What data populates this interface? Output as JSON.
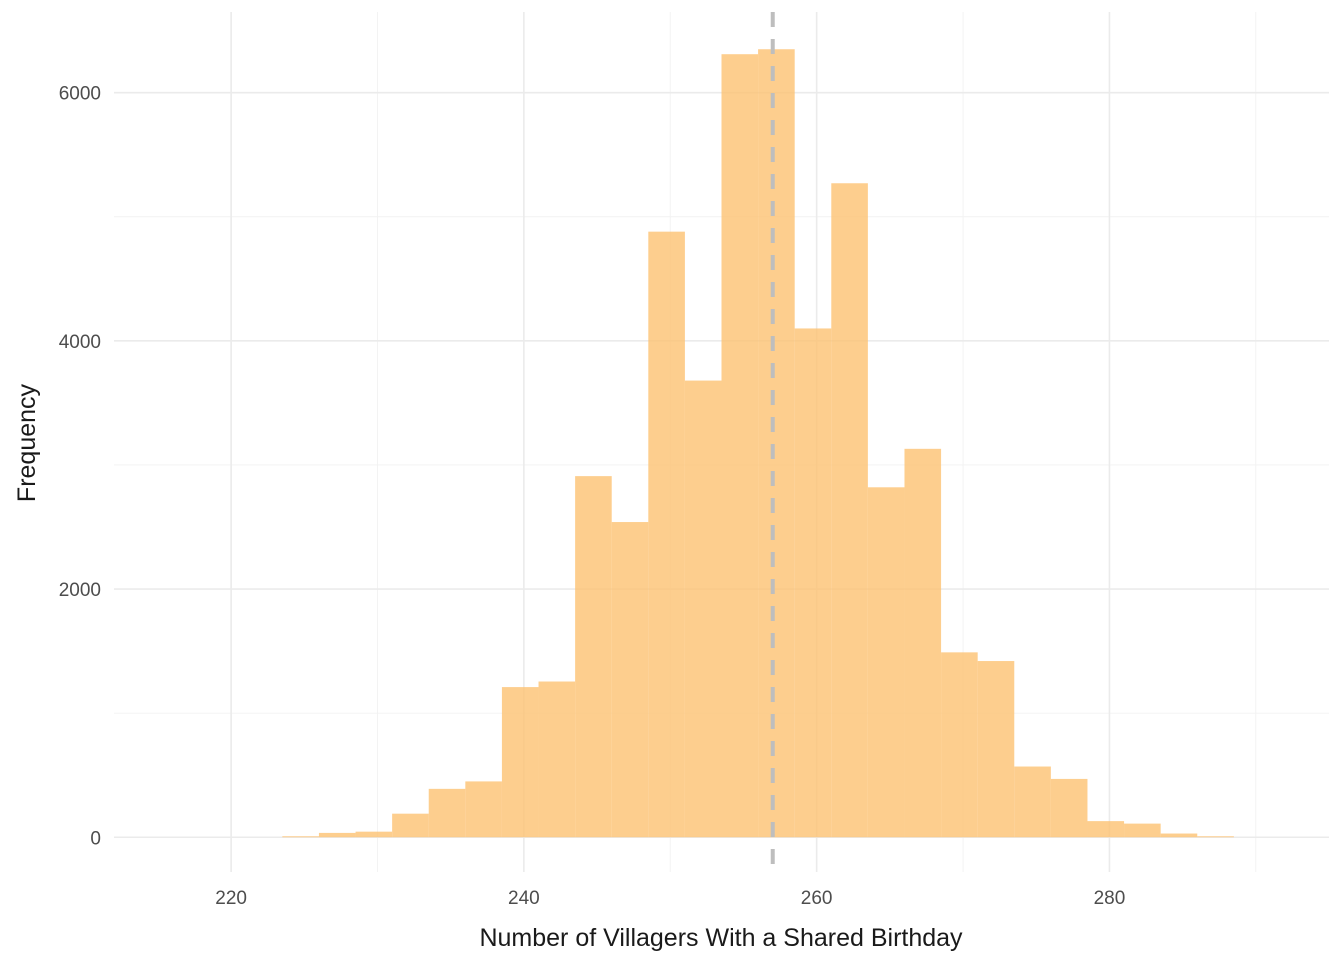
{
  "chart_data": {
    "type": "bar",
    "subtype": "histogram",
    "xlabel": "Number of Villagers With a Shared Birthday",
    "ylabel": "Frequency",
    "xlim": [
      212,
      295
    ],
    "ylim": [
      -280,
      6650
    ],
    "x_ticks": [
      220,
      240,
      260,
      280
    ],
    "x_tick_labels": [
      "220",
      "240",
      "260",
      "280"
    ],
    "y_ticks": [
      0,
      2000,
      4000,
      6000
    ],
    "y_tick_labels": [
      "0",
      "2000",
      "4000",
      "6000"
    ],
    "grid": true,
    "bin_width": 2.5,
    "bins": [
      {
        "x0": 223.5,
        "x1": 226.0,
        "count": 8
      },
      {
        "x0": 226.0,
        "x1": 228.5,
        "count": 35
      },
      {
        "x0": 228.5,
        "x1": 231.0,
        "count": 45
      },
      {
        "x0": 231.0,
        "x1": 233.5,
        "count": 190
      },
      {
        "x0": 233.5,
        "x1": 236.0,
        "count": 390
      },
      {
        "x0": 236.0,
        "x1": 238.5,
        "count": 450
      },
      {
        "x0": 238.5,
        "x1": 241.0,
        "count": 1210
      },
      {
        "x0": 241.0,
        "x1": 243.5,
        "count": 1255
      },
      {
        "x0": 243.5,
        "x1": 246.0,
        "count": 2910
      },
      {
        "x0": 246.0,
        "x1": 248.5,
        "count": 2540
      },
      {
        "x0": 248.5,
        "x1": 251.0,
        "count": 4880
      },
      {
        "x0": 251.0,
        "x1": 253.5,
        "count": 3680
      },
      {
        "x0": 253.5,
        "x1": 256.0,
        "count": 6310
      },
      {
        "x0": 256.0,
        "x1": 258.5,
        "count": 6350
      },
      {
        "x0": 258.5,
        "x1": 261.0,
        "count": 4100
      },
      {
        "x0": 261.0,
        "x1": 263.5,
        "count": 5270
      },
      {
        "x0": 263.5,
        "x1": 266.0,
        "count": 2820
      },
      {
        "x0": 266.0,
        "x1": 268.5,
        "count": 3130
      },
      {
        "x0": 268.5,
        "x1": 271.0,
        "count": 1490
      },
      {
        "x0": 271.0,
        "x1": 273.5,
        "count": 1420
      },
      {
        "x0": 273.5,
        "x1": 276.0,
        "count": 570
      },
      {
        "x0": 276.0,
        "x1": 278.5,
        "count": 470
      },
      {
        "x0": 278.5,
        "x1": 281.0,
        "count": 130
      },
      {
        "x0": 281.0,
        "x1": 283.5,
        "count": 110
      },
      {
        "x0": 283.5,
        "x1": 286.0,
        "count": 30
      },
      {
        "x0": 286.0,
        "x1": 288.5,
        "count": 8
      }
    ],
    "reference_line": {
      "x": 257,
      "style": "dashed",
      "color": "#bebebe"
    },
    "bar_color": "#fdc272"
  }
}
